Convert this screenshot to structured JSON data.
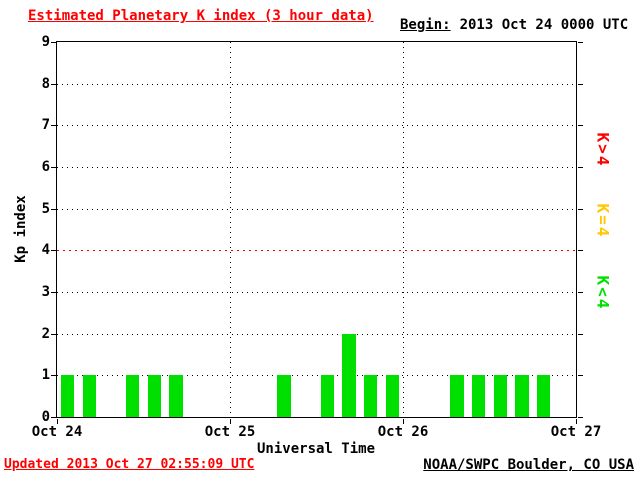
{
  "header": {
    "title": "Estimated Planetary K index (3 hour data)",
    "begin_label": "Begin:",
    "begin_value": "2013 Oct 24 0000 UTC"
  },
  "footer": {
    "updated": "Updated 2013 Oct 27 02:55:09 UTC",
    "credit": "NOAA/SWPC Boulder, CO USA"
  },
  "legend": [
    {
      "label": "K>4",
      "color": "#ff0000"
    },
    {
      "label": "K=4",
      "color": "#ffc800"
    },
    {
      "label": "K<4",
      "color": "#00e000"
    }
  ],
  "chart_data": {
    "type": "bar",
    "title": "Estimated Planetary K index (3 hour data)",
    "xlabel": "Universal Time",
    "ylabel": "Kp index",
    "ylim": [
      0,
      9
    ],
    "yticks": [
      0,
      1,
      2,
      3,
      4,
      5,
      6,
      7,
      8,
      9
    ],
    "xticks": [
      "Oct 24",
      "Oct 25",
      "Oct 26",
      "Oct 27"
    ],
    "grid": "dotted",
    "legend_position": "right-rotated",
    "bar_color": "#00e000",
    "threshold": 4,
    "threshold_color": "#ff0000",
    "bars_per_day": 8,
    "interval_hours": 3,
    "days": [
      {
        "date": "Oct 24",
        "values": [
          1,
          1,
          0,
          1,
          1,
          1,
          0,
          0
        ]
      },
      {
        "date": "Oct 25",
        "values": [
          0,
          0,
          1,
          0,
          1,
          2,
          1,
          1
        ]
      },
      {
        "date": "Oct 26",
        "values": [
          0,
          0,
          1,
          1,
          1,
          1,
          1,
          0
        ]
      }
    ]
  }
}
